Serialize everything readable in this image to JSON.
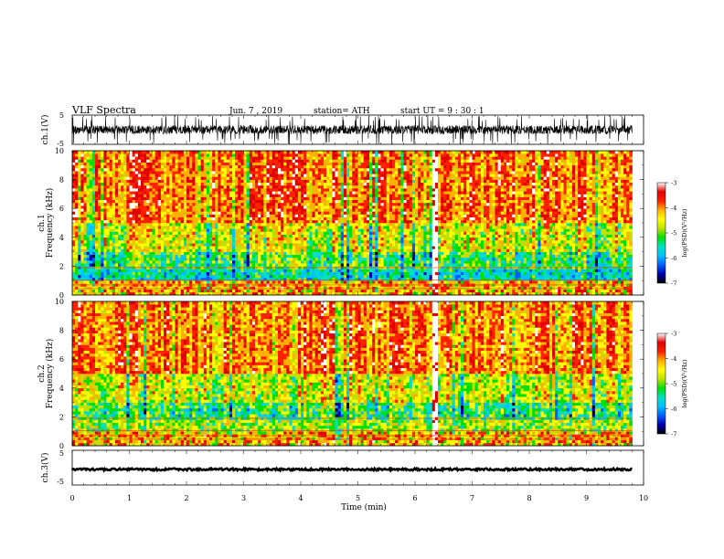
{
  "header": {
    "title": "VLF  Spectra",
    "date": "Jun. 7  , 2019",
    "station": "station= ATH",
    "start_ut": "start  UT  =   9  : 30 : 1"
  },
  "colors": {
    "cbar_stops": [
      "#000000",
      "#0000b0",
      "#0060ff",
      "#00c0ff",
      "#00e0c0",
      "#00e000",
      "#c0e000",
      "#ffff00",
      "#ffb000",
      "#ff2000",
      "#e00000",
      "#ffffff"
    ]
  },
  "chart_data": [
    {
      "type": "line",
      "panel": "ch1-waveform",
      "ylabel": "ch.1(V)",
      "ylim": [
        -5,
        5
      ],
      "y_ticks": [
        "5",
        "-5"
      ],
      "xlim": [
        0,
        10
      ],
      "data_range": [
        0,
        9.8
      ],
      "description_values": {
        "mean": 0,
        "typical_amplitude": 1.5,
        "peak_amplitude": 5
      }
    },
    {
      "type": "heatmap",
      "panel": "ch1-spectrogram",
      "ylabel_lines": [
        "ch.1",
        "Frequency  (kHz)"
      ],
      "ylim": [
        0,
        10
      ],
      "y_ticks": [
        "0",
        "2",
        "4",
        "6",
        "8",
        "10"
      ],
      "xlim": [
        0,
        10
      ],
      "data_range": [
        0,
        9.8
      ],
      "bright_event_min": 6.35,
      "colorbar": {
        "label": "log(PSD)(V²/Hz)",
        "range": [
          -7,
          -3
        ],
        "ticks": [
          "-3",
          "-4",
          "-5",
          "-6",
          "-7"
        ]
      }
    },
    {
      "type": "heatmap",
      "panel": "ch2-spectrogram",
      "ylabel_lines": [
        "ch.2",
        "Frequency  (kHz)"
      ],
      "ylim": [
        0,
        10
      ],
      "y_ticks": [
        "0",
        "2",
        "4",
        "6",
        "8",
        "10"
      ],
      "xlim": [
        0,
        10
      ],
      "data_range": [
        0,
        9.8
      ],
      "bright_event_min": 6.35,
      "colorbar": {
        "label": "log(PSD)(V²/Hz)",
        "range": [
          -7,
          -3
        ],
        "ticks": [
          "-3",
          "-4",
          "-5",
          "-6",
          "-7"
        ]
      }
    },
    {
      "type": "line",
      "panel": "ch3-waveform",
      "ylabel": "ch.3(V)",
      "ylim": [
        -5,
        5
      ],
      "y_ticks": [
        "5",
        "-5"
      ],
      "xlim": [
        0,
        10
      ],
      "data_range": [
        0,
        9.8
      ],
      "description_values": {
        "mean": -0.5,
        "typical_amplitude": 0.3
      }
    }
  ],
  "x_axis": {
    "label": "Time  (min)",
    "ticks": [
      "0",
      "1",
      "2",
      "3",
      "4",
      "5",
      "6",
      "7",
      "8",
      "9",
      "10"
    ]
  }
}
